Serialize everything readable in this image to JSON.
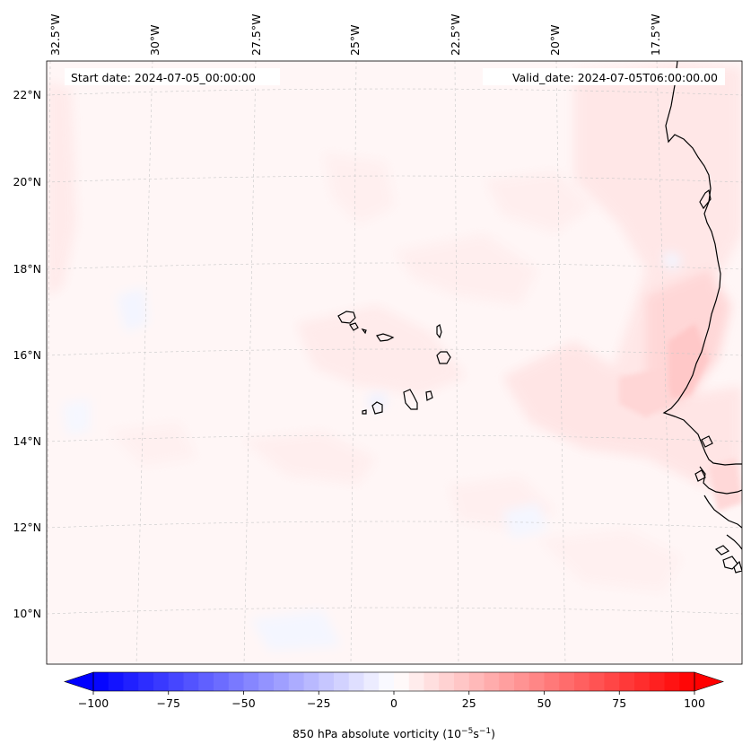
{
  "header": {
    "start_date": "Start date: 2024-07-05_00:00:00",
    "valid_date": "Valid_date: 2024-07-05T06:00:00.00"
  },
  "map": {
    "lon_labels": [
      "32.5°W",
      "30°W",
      "27.5°W",
      "25°W",
      "22.5°W",
      "20°W",
      "17.5°W"
    ],
    "lat_labels": [
      "22°N",
      "20°N",
      "18°N",
      "16°N",
      "14°N",
      "12°N",
      "10°N"
    ],
    "lat_range": [
      8.9,
      22.8
    ],
    "lon_range": [
      -32.6,
      -15.3
    ],
    "gridlines": true,
    "coastline_color": "#000000"
  },
  "colorbar": {
    "ticks": [
      "−100",
      "−75",
      "−50",
      "−25",
      "0",
      "25",
      "50",
      "75",
      "100"
    ],
    "tick_values": [
      -100,
      -75,
      -50,
      -25,
      0,
      25,
      50,
      75,
      100
    ],
    "range": [
      -100,
      100
    ],
    "label_main": "850 hPa absolute vorticity (10",
    "label_exp1": "−5",
    "label_mid": "s",
    "label_exp2": "−1",
    "label_end": ")",
    "colormap": "bwr",
    "low_color": "#0000ff",
    "mid_color": "#ffffff",
    "high_color": "#ff0000"
  }
}
